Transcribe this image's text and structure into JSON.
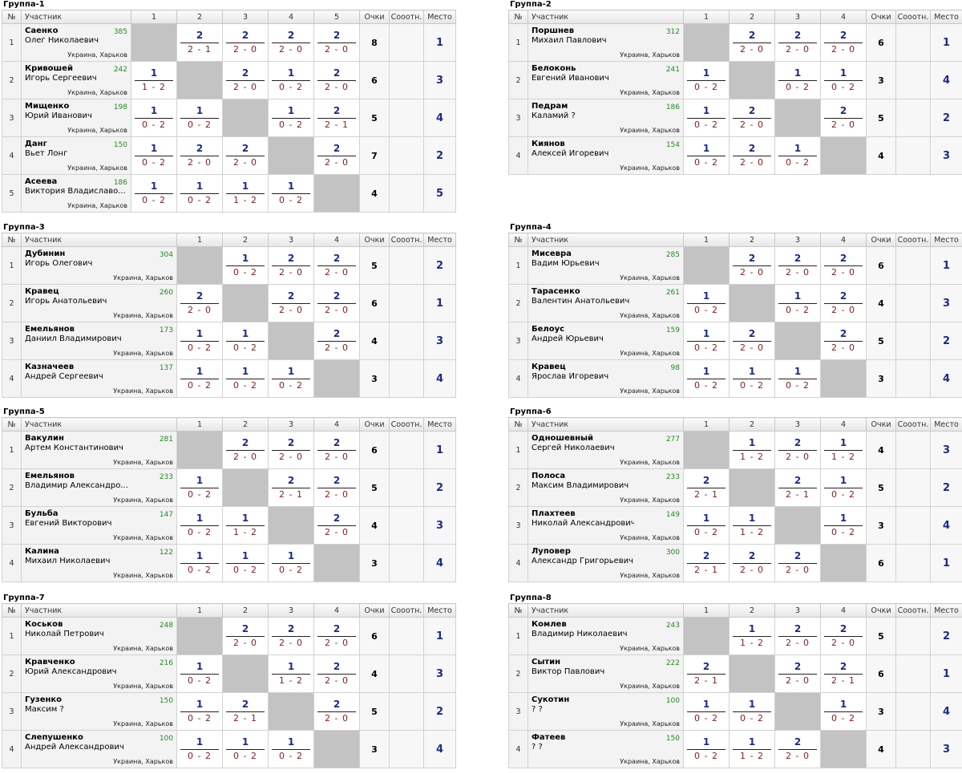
{
  "headers": {
    "no": "№",
    "participant": "Участник",
    "points": "Очки",
    "corr": "Сооотн.",
    "place": "Место"
  },
  "groups": [
    {
      "title": "Группа-1",
      "players": [
        {
          "no": "1",
          "surname": "Саенко",
          "name": "Олег Николаевич",
          "rating": "385",
          "city": "Украина, Харьков",
          "results": [
            null,
            [
              "2",
              "2 - 1"
            ],
            [
              "2",
              "2 - 0"
            ],
            [
              "2",
              "2 - 0"
            ],
            [
              "2",
              "2 - 0"
            ]
          ],
          "points": "8",
          "place": "1"
        },
        {
          "no": "2",
          "surname": "Кривошей",
          "name": "Игорь Сергеевич",
          "rating": "242",
          "city": "Украина, Харьков",
          "results": [
            [
              "1",
              "1 - 2"
            ],
            null,
            [
              "2",
              "2 - 0"
            ],
            [
              "1",
              "0 - 2"
            ],
            [
              "2",
              "2 - 0"
            ]
          ],
          "points": "6",
          "place": "3"
        },
        {
          "no": "3",
          "surname": "Мищенко",
          "name": "Юрий Иванович",
          "rating": "198",
          "city": "Украина, Харьков",
          "results": [
            [
              "1",
              "0 - 2"
            ],
            [
              "1",
              "0 - 2"
            ],
            null,
            [
              "1",
              "0 - 2"
            ],
            [
              "2",
              "2 - 1"
            ]
          ],
          "points": "5",
          "place": "4"
        },
        {
          "no": "4",
          "surname": "Данг",
          "name": "Вьет Лонг",
          "rating": "150",
          "city": "Украина, Харьков",
          "results": [
            [
              "1",
              "0 - 2"
            ],
            [
              "2",
              "2 - 0"
            ],
            [
              "2",
              "2 - 0"
            ],
            null,
            [
              "2",
              "2 - 0"
            ]
          ],
          "points": "7",
          "place": "2"
        },
        {
          "no": "5",
          "surname": "Асеева",
          "name": "Виктория Владиславо...",
          "rating": "186",
          "city": "Украина, Харьков",
          "results": [
            [
              "1",
              "0 - 2"
            ],
            [
              "1",
              "0 - 2"
            ],
            [
              "1",
              "1 - 2"
            ],
            [
              "1",
              "0 - 2"
            ],
            null
          ],
          "points": "4",
          "place": "5"
        }
      ]
    },
    {
      "title": "Группа-2",
      "players": [
        {
          "no": "1",
          "surname": "Поршнев",
          "name": "Михаил Павлович",
          "rating": "312",
          "city": "Украина, Харьков",
          "results": [
            null,
            [
              "2",
              "2 - 0"
            ],
            [
              "2",
              "2 - 0"
            ],
            [
              "2",
              "2 - 0"
            ]
          ],
          "points": "6",
          "place": "1"
        },
        {
          "no": "2",
          "surname": "Белоконь",
          "name": "Евгений Иванович",
          "rating": "241",
          "city": "Украина, Харьков",
          "results": [
            [
              "1",
              "0 - 2"
            ],
            null,
            [
              "1",
              "0 - 2"
            ],
            [
              "1",
              "0 - 2"
            ]
          ],
          "points": "3",
          "place": "4"
        },
        {
          "no": "3",
          "surname": "Педрам",
          "name": "Каламий ?",
          "rating": "186",
          "city": "Украина, Харьков",
          "results": [
            [
              "1",
              "0 - 2"
            ],
            [
              "2",
              "2 - 0"
            ],
            null,
            [
              "2",
              "2 - 0"
            ]
          ],
          "points": "5",
          "place": "2"
        },
        {
          "no": "4",
          "surname": "Киянов",
          "name": "Алексей Игоревич",
          "rating": "154",
          "city": "Украина, Харьков",
          "results": [
            [
              "1",
              "0 - 2"
            ],
            [
              "2",
              "2 - 0"
            ],
            [
              "1",
              "0 - 2"
            ],
            null
          ],
          "points": "4",
          "place": "3"
        }
      ]
    },
    {
      "title": "Группа-3",
      "players": [
        {
          "no": "1",
          "surname": "Дубинин",
          "name": "Игорь Олегович",
          "rating": "304",
          "city": "Украина, Харьков",
          "results": [
            null,
            [
              "1",
              "0 - 2"
            ],
            [
              "2",
              "2 - 0"
            ],
            [
              "2",
              "2 - 0"
            ]
          ],
          "points": "5",
          "place": "2"
        },
        {
          "no": "2",
          "surname": "Кравец",
          "name": "Игорь Анатольевич",
          "rating": "260",
          "city": "Украина, Харьков",
          "results": [
            [
              "2",
              "2 - 0"
            ],
            null,
            [
              "2",
              "2 - 0"
            ],
            [
              "2",
              "2 - 0"
            ]
          ],
          "points": "6",
          "place": "1"
        },
        {
          "no": "3",
          "surname": "Емельянов",
          "name": "Даниил Владимирович",
          "rating": "173",
          "city": "Украина, Харьков",
          "results": [
            [
              "1",
              "0 - 2"
            ],
            [
              "1",
              "0 - 2"
            ],
            null,
            [
              "2",
              "2 - 0"
            ]
          ],
          "points": "4",
          "place": "3"
        },
        {
          "no": "4",
          "surname": "Казначеев",
          "name": "Андрей Сергеевич",
          "rating": "137",
          "city": "Украина, Харьков",
          "results": [
            [
              "1",
              "0 - 2"
            ],
            [
              "1",
              "0 - 2"
            ],
            [
              "1",
              "0 - 2"
            ],
            null
          ],
          "points": "3",
          "place": "4"
        }
      ]
    },
    {
      "title": "Группа-4",
      "players": [
        {
          "no": "1",
          "surname": "Мисевра",
          "name": "Вадим Юрьевич",
          "rating": "285",
          "city": "Украина, Харьков",
          "results": [
            null,
            [
              "2",
              "2 - 0"
            ],
            [
              "2",
              "2 - 0"
            ],
            [
              "2",
              "2 - 0"
            ]
          ],
          "points": "6",
          "place": "1"
        },
        {
          "no": "2",
          "surname": "Тарасенко",
          "name": "Валентин Анатольевич",
          "rating": "261",
          "city": "Украина, Харьков",
          "results": [
            [
              "1",
              "0 - 2"
            ],
            null,
            [
              "1",
              "0 - 2"
            ],
            [
              "2",
              "2 - 0"
            ]
          ],
          "points": "4",
          "place": "3"
        },
        {
          "no": "3",
          "surname": "Белоус",
          "name": "Андрей Юрьевич",
          "rating": "159",
          "city": "Украина, Харьков",
          "results": [
            [
              "1",
              "0 - 2"
            ],
            [
              "2",
              "2 - 0"
            ],
            null,
            [
              "2",
              "2 - 0"
            ]
          ],
          "points": "5",
          "place": "2"
        },
        {
          "no": "4",
          "surname": "Кравец",
          "name": "Ярослав Игоревич",
          "rating": "98",
          "city": "Украина, Харьков",
          "results": [
            [
              "1",
              "0 - 2"
            ],
            [
              "1",
              "0 - 2"
            ],
            [
              "1",
              "0 - 2"
            ],
            null
          ],
          "points": "3",
          "place": "4"
        }
      ]
    },
    {
      "title": "Группа-5",
      "players": [
        {
          "no": "1",
          "surname": "Вакулин",
          "name": "Артем Константинович",
          "rating": "281",
          "city": "Украина, Харьков",
          "results": [
            null,
            [
              "2",
              "2 - 0"
            ],
            [
              "2",
              "2 - 0"
            ],
            [
              "2",
              "2 - 0"
            ]
          ],
          "points": "6",
          "place": "1"
        },
        {
          "no": "2",
          "surname": "Емельянов",
          "name": "Владимир Александро...",
          "rating": "233",
          "city": "Украина, Харьков",
          "results": [
            [
              "1",
              "0 - 2"
            ],
            null,
            [
              "2",
              "2 - 1"
            ],
            [
              "2",
              "2 - 0"
            ]
          ],
          "points": "5",
          "place": "2"
        },
        {
          "no": "3",
          "surname": "Бульба",
          "name": "Евгений Викторович",
          "rating": "147",
          "city": "Украина, Харьков",
          "results": [
            [
              "1",
              "0 - 2"
            ],
            [
              "1",
              "1 - 2"
            ],
            null,
            [
              "2",
              "2 - 0"
            ]
          ],
          "points": "4",
          "place": "3"
        },
        {
          "no": "4",
          "surname": "Калина",
          "name": "Михаил Николаевич",
          "rating": "122",
          "city": "Украина, Харьков",
          "results": [
            [
              "1",
              "0 - 2"
            ],
            [
              "1",
              "0 - 2"
            ],
            [
              "1",
              "0 - 2"
            ],
            null
          ],
          "points": "3",
          "place": "4"
        }
      ]
    },
    {
      "title": "Группа-6",
      "players": [
        {
          "no": "1",
          "surname": "Одношевный",
          "name": "Сергей Николаевич",
          "rating": "277",
          "city": "Украина, Харьков",
          "results": [
            null,
            [
              "1",
              "1 - 2"
            ],
            [
              "2",
              "2 - 0"
            ],
            [
              "1",
              "1 - 2"
            ]
          ],
          "points": "4",
          "place": "3"
        },
        {
          "no": "2",
          "surname": "Полоса",
          "name": "Максим Владимирович",
          "rating": "233",
          "city": "Украина, Харьков",
          "results": [
            [
              "2",
              "2 - 1"
            ],
            null,
            [
              "2",
              "2 - 1"
            ],
            [
              "1",
              "0 - 2"
            ]
          ],
          "points": "5",
          "place": "2"
        },
        {
          "no": "3",
          "surname": "Плахтеев",
          "name": "Николай Александрович",
          "rating": "149",
          "city": "Украина, Харьков",
          "results": [
            [
              "1",
              "0 - 2"
            ],
            [
              "1",
              "1 - 2"
            ],
            null,
            [
              "1",
              "0 - 2"
            ]
          ],
          "points": "3",
          "place": "4"
        },
        {
          "no": "4",
          "surname": "Луповер",
          "name": "Александр Григорьевич",
          "rating": "300",
          "city": "Украина, Харьков",
          "results": [
            [
              "2",
              "2 - 1"
            ],
            [
              "2",
              "2 - 0"
            ],
            [
              "2",
              "2 - 0"
            ],
            null
          ],
          "points": "6",
          "place": "1"
        }
      ]
    },
    {
      "title": "Группа-7",
      "players": [
        {
          "no": "1",
          "surname": "Коськов",
          "name": "Николай Петрович",
          "rating": "248",
          "city": "Украина, Харьков",
          "results": [
            null,
            [
              "2",
              "2 - 0"
            ],
            [
              "2",
              "2 - 0"
            ],
            [
              "2",
              "2 - 0"
            ]
          ],
          "points": "6",
          "place": "1"
        },
        {
          "no": "2",
          "surname": "Кравченко",
          "name": "Юрий Александрович",
          "rating": "216",
          "city": "Украина, Харьков",
          "results": [
            [
              "1",
              "0 - 2"
            ],
            null,
            [
              "1",
              "1 - 2"
            ],
            [
              "2",
              "2 - 0"
            ]
          ],
          "points": "4",
          "place": "3"
        },
        {
          "no": "3",
          "surname": "Гузенко",
          "name": "Максим ?",
          "rating": "150",
          "city": "Украина, Харьков",
          "results": [
            [
              "1",
              "0 - 2"
            ],
            [
              "2",
              "2 - 1"
            ],
            null,
            [
              "2",
              "2 - 0"
            ]
          ],
          "points": "5",
          "place": "2"
        },
        {
          "no": "4",
          "surname": "Слепушенко",
          "name": "Андрей Александрович",
          "rating": "100",
          "city": "Украина, Харьков",
          "results": [
            [
              "1",
              "0 - 2"
            ],
            [
              "1",
              "0 - 2"
            ],
            [
              "1",
              "0 - 2"
            ],
            null
          ],
          "points": "3",
          "place": "4"
        }
      ]
    },
    {
      "title": "Группа-8",
      "players": [
        {
          "no": "1",
          "surname": "Комлев",
          "name": "Владимир Николаевич",
          "rating": "243",
          "city": "Украина, Харьков",
          "results": [
            null,
            [
              "1",
              "1 - 2"
            ],
            [
              "2",
              "2 - 0"
            ],
            [
              "2",
              "2 - 0"
            ]
          ],
          "points": "5",
          "place": "2"
        },
        {
          "no": "2",
          "surname": "Сытин",
          "name": "Виктор Павлович",
          "rating": "222",
          "city": "Украина, Харьков",
          "results": [
            [
              "2",
              "2 - 1"
            ],
            null,
            [
              "2",
              "2 - 0"
            ],
            [
              "2",
              "2 - 1"
            ]
          ],
          "points": "6",
          "place": "1"
        },
        {
          "no": "3",
          "surname": "Сукотин",
          "name": "? ?",
          "rating": "100",
          "city": "Украина, Харьков",
          "results": [
            [
              "1",
              "0 - 2"
            ],
            [
              "1",
              "0 - 2"
            ],
            null,
            [
              "1",
              "0 - 2"
            ]
          ],
          "points": "3",
          "place": "4"
        },
        {
          "no": "4",
          "surname": "Фатеев",
          "name": "? ?",
          "rating": "150",
          "city": "Украина, Харьков",
          "results": [
            [
              "1",
              "0 - 2"
            ],
            [
              "1",
              "1 - 2"
            ],
            [
              "2",
              "2 - 0"
            ],
            null
          ],
          "points": "4",
          "place": "3"
        }
      ]
    }
  ]
}
